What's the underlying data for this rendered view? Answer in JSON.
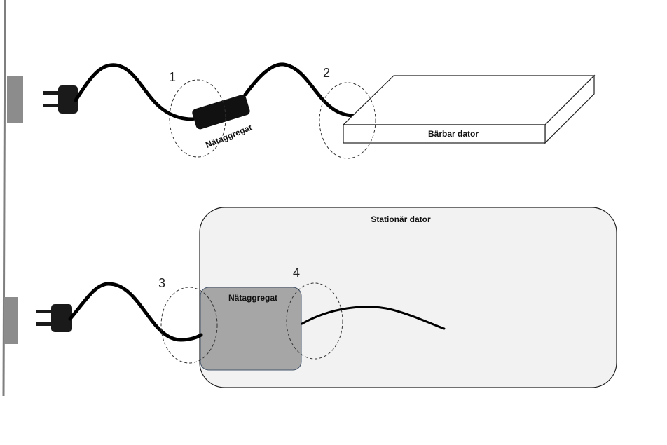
{
  "diagram": {
    "callouts": [
      "1",
      "2",
      "3",
      "4"
    ],
    "laptop": {
      "label": "Bärbar dator"
    },
    "desktop": {
      "label": "Stationär dator"
    },
    "adapter_external": {
      "label": "Nätaggregat"
    },
    "adapter_internal": {
      "label": "Nätaggregat"
    }
  },
  "colors": {
    "cable": "#000000",
    "plug": "#1a1a1a",
    "wall": "#7f7f7f",
    "desktop_fill": "#f2f2f2",
    "psu_fill": "#a6a6a6"
  }
}
